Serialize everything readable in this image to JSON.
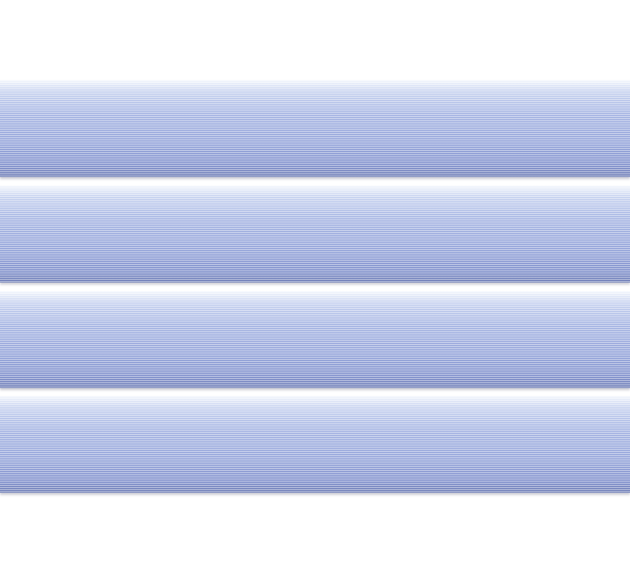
{
  "image": {
    "subject": "striped-panels",
    "panel_count": 4,
    "colors": {
      "background": "#ffffff",
      "panel_light": "#c9d4f0",
      "panel_mid": "#9aa9dc",
      "panel_dark": "#7482b8"
    }
  }
}
